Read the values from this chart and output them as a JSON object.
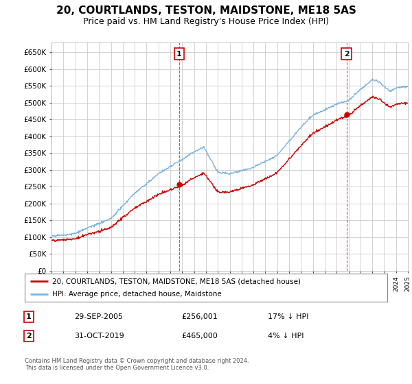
{
  "title": "20, COURTLANDS, TESTON, MAIDSTONE, ME18 5AS",
  "subtitle": "Price paid vs. HM Land Registry's House Price Index (HPI)",
  "title_fontsize": 11,
  "subtitle_fontsize": 9,
  "ylabel_vals": [
    "£0",
    "£50K",
    "£100K",
    "£150K",
    "£200K",
    "£250K",
    "£300K",
    "£350K",
    "£400K",
    "£450K",
    "£500K",
    "£550K",
    "£600K",
    "£650K"
  ],
  "yticks": [
    0,
    50000,
    100000,
    150000,
    200000,
    250000,
    300000,
    350000,
    400000,
    450000,
    500000,
    550000,
    600000,
    650000
  ],
  "ylim": [
    0,
    680000
  ],
  "background_color": "#ffffff",
  "grid_color": "#cccccc",
  "hpi_color": "#7ab3e0",
  "price_color": "#cc0000",
  "marker1_year": 2005.75,
  "marker1_price": 256001,
  "marker2_year": 2019.83,
  "marker2_price": 465000,
  "legend_line1": "20, COURTLANDS, TESTON, MAIDSTONE, ME18 5AS (detached house)",
  "legend_line2": "HPI: Average price, detached house, Maidstone",
  "table_row1": [
    "1",
    "29-SEP-2005",
    "£256,001",
    "17% ↓ HPI"
  ],
  "table_row2": [
    "2",
    "31-OCT-2019",
    "£465,000",
    "4% ↓ HPI"
  ],
  "footer": "Contains HM Land Registry data © Crown copyright and database right 2024.\nThis data is licensed under the Open Government Licence v3.0.",
  "x_start_year": 1995,
  "x_end_year": 2025
}
